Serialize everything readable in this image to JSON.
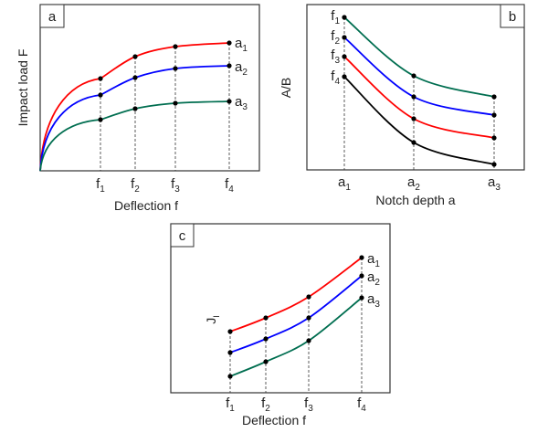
{
  "panels": [
    {
      "id": "a",
      "label": "a",
      "xlabel": "Deflection f",
      "ylabel": "Impact load F",
      "x_ticks": [
        {
          "base": "f",
          "sub": "1"
        },
        {
          "base": "f",
          "sub": "2"
        },
        {
          "base": "f",
          "sub": "3"
        },
        {
          "base": "f",
          "sub": "4"
        }
      ],
      "series_labels": [
        {
          "base": "a",
          "sub": "1"
        },
        {
          "base": "a",
          "sub": "2"
        },
        {
          "base": "a",
          "sub": "3"
        }
      ],
      "series_colors": [
        "#ff0000",
        "#0000ff",
        "#006e50"
      ]
    },
    {
      "id": "b",
      "label": "b",
      "xlabel": "Notch depth a",
      "ylabel": "A/B",
      "x_ticks": [
        {
          "base": "a",
          "sub": "1"
        },
        {
          "base": "a",
          "sub": "2"
        },
        {
          "base": "a",
          "sub": "3"
        }
      ],
      "series_labels": [
        {
          "base": "f",
          "sub": "1"
        },
        {
          "base": "f",
          "sub": "2"
        },
        {
          "base": "f",
          "sub": "3"
        },
        {
          "base": "f",
          "sub": "4"
        }
      ],
      "series_colors": [
        "#006e50",
        "#0000ff",
        "#ff0000",
        "#000000"
      ]
    },
    {
      "id": "c",
      "label": "c",
      "xlabel": "Deflection f",
      "ylabel": {
        "base": "J",
        "sub": "I"
      },
      "x_ticks": [
        {
          "base": "f",
          "sub": "1"
        },
        {
          "base": "f",
          "sub": "2"
        },
        {
          "base": "f",
          "sub": "3"
        },
        {
          "base": "f",
          "sub": "4"
        }
      ],
      "series_labels": [
        {
          "base": "a",
          "sub": "1"
        },
        {
          "base": "a",
          "sub": "2"
        },
        {
          "base": "a",
          "sub": "3"
        }
      ],
      "series_colors": [
        "#ff0000",
        "#0000ff",
        "#006e50"
      ]
    }
  ]
}
